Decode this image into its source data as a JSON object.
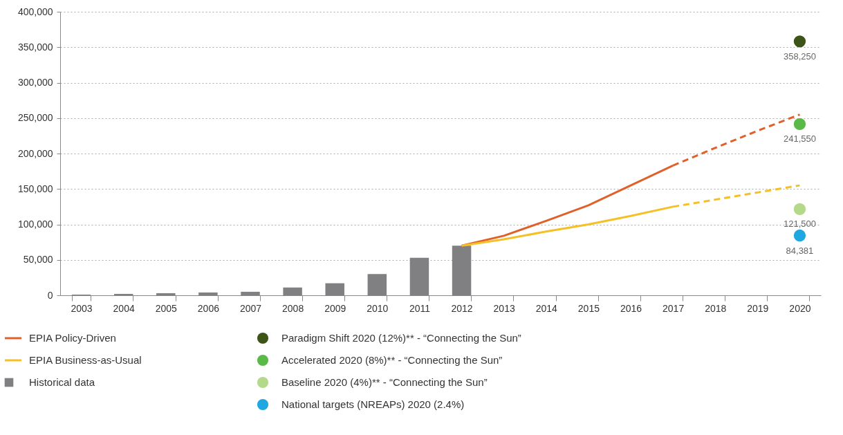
{
  "chart_data": {
    "type": "bar",
    "categories": [
      "2003",
      "2004",
      "2005",
      "2006",
      "2007",
      "2008",
      "2009",
      "2010",
      "2011",
      "2012",
      "2013",
      "2014",
      "2015",
      "2016",
      "2017",
      "2018",
      "2019",
      "2020"
    ],
    "series": [
      {
        "name": "EPIA Policy-Driven",
        "type": "line",
        "color": "#e0602a",
        "line_style": "solid",
        "values": [
          null,
          null,
          null,
          null,
          null,
          null,
          null,
          null,
          null,
          70000,
          84000,
          105000,
          127000,
          155000,
          183000,
          null,
          null,
          null
        ]
      },
      {
        "type": "line",
        "color": "#e0602a",
        "line_style": "dashed",
        "values": [
          null,
          null,
          null,
          null,
          null,
          null,
          null,
          null,
          null,
          null,
          null,
          null,
          null,
          null,
          183000,
          208000,
          232000,
          255000
        ]
      },
      {
        "name": "EPIA Business-as-Usual",
        "type": "line",
        "color": "#f5c025",
        "line_style": "solid",
        "values": [
          null,
          null,
          null,
          null,
          null,
          null,
          null,
          null,
          null,
          70000,
          79000,
          90000,
          100000,
          112000,
          125000,
          null,
          null,
          null
        ]
      },
      {
        "type": "line",
        "color": "#f5c025",
        "line_style": "dashed",
        "values": [
          null,
          null,
          null,
          null,
          null,
          null,
          null,
          null,
          null,
          null,
          null,
          null,
          null,
          null,
          125000,
          135000,
          145000,
          155000
        ]
      },
      {
        "name": "Historical data",
        "color": "#808083",
        "values": [
          1000,
          2000,
          3000,
          4000,
          5000,
          11000,
          17000,
          30000,
          53000,
          70000,
          null,
          null,
          null,
          null,
          null,
          null,
          null,
          null
        ]
      },
      {
        "name": "Paradigm Shift 2020 (12%)** - “Connecting the Sun”",
        "type": "scatter",
        "marker": "circle",
        "color": "#3d5418",
        "values": [
          null,
          null,
          null,
          null,
          null,
          null,
          null,
          null,
          null,
          null,
          null,
          null,
          null,
          null,
          null,
          null,
          null,
          358250
        ],
        "value_labels": [
          null,
          null,
          null,
          null,
          null,
          null,
          null,
          null,
          null,
          null,
          null,
          null,
          null,
          null,
          null,
          null,
          null,
          "358,250"
        ]
      },
      {
        "name": "Accelerated 2020 (8%)** - “Connecting the Sun”",
        "type": "scatter",
        "marker": "circle",
        "color": "#5bb947",
        "values": [
          null,
          null,
          null,
          null,
          null,
          null,
          null,
          null,
          null,
          null,
          null,
          null,
          null,
          null,
          null,
          null,
          null,
          241550
        ],
        "value_labels": [
          null,
          null,
          null,
          null,
          null,
          null,
          null,
          null,
          null,
          null,
          null,
          null,
          null,
          null,
          null,
          null,
          null,
          "241,550"
        ]
      },
      {
        "name": "Baseline 2020 (4%)** - “Connecting the Sun”",
        "type": "scatter",
        "marker": "circle",
        "color": "#b4d98a",
        "values": [
          null,
          null,
          null,
          null,
          null,
          null,
          null,
          null,
          null,
          null,
          null,
          null,
          null,
          null,
          null,
          null,
          null,
          121500
        ],
        "value_labels": [
          null,
          null,
          null,
          null,
          null,
          null,
          null,
          null,
          null,
          null,
          null,
          null,
          null,
          null,
          null,
          null,
          null,
          "121,500"
        ]
      },
      {
        "name": "National targets (NREAPs) 2020 (2.4%)",
        "type": "scatter",
        "marker": "circle",
        "color": "#1ea7e1",
        "values": [
          null,
          null,
          null,
          null,
          null,
          null,
          null,
          null,
          null,
          null,
          null,
          null,
          null,
          null,
          null,
          null,
          null,
          84381
        ],
        "value_labels": [
          null,
          null,
          null,
          null,
          null,
          null,
          null,
          null,
          null,
          null,
          null,
          null,
          null,
          null,
          null,
          null,
          null,
          "84,381"
        ]
      }
    ],
    "ylim": [
      0,
      400000
    ],
    "yticks": [
      0,
      {
        "value": 50000,
        "label": "50,000"
      },
      {
        "value": 100000,
        "label": "100,000"
      },
      {
        "value": 150000,
        "label": "150,000"
      },
      {
        "value": 200000,
        "label": "200,000"
      },
      {
        "value": 250000,
        "label": "250,000"
      },
      {
        "value": 300000,
        "label": "300,000"
      },
      {
        "value": 350000,
        "label": "350,000"
      },
      {
        "value": 400000,
        "label": "400,000"
      }
    ],
    "grid": "y",
    "legend": "bottom"
  }
}
